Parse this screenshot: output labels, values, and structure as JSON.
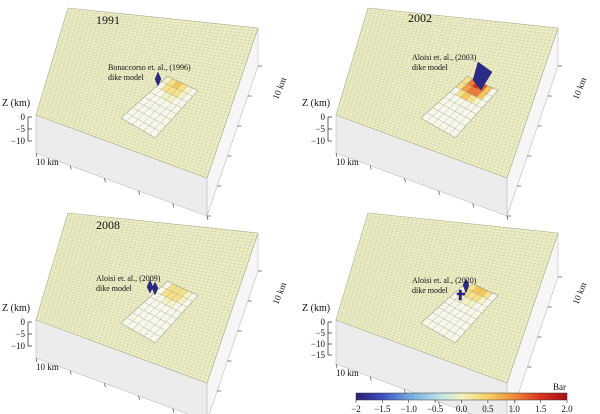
{
  "panels": [
    {
      "year": "1991",
      "annotation": [
        "Bonaccorso et. al., (1996)",
        "dike model"
      ],
      "z_label": "Z (km)",
      "z_ticks": [
        "0",
        "−5",
        "−10"
      ],
      "x_label": "10 km",
      "y_label": "10 km",
      "patch_intensity": 0.35
    },
    {
      "year": "2002",
      "annotation": [
        "Aloisi et. al., (2003)",
        "dike model"
      ],
      "z_label": "Z (km)",
      "z_ticks": [
        "0",
        "−5",
        "−10"
      ],
      "x_label": "10 km",
      "y_label": "10 km",
      "patch_intensity": 1.0
    },
    {
      "year": "2008",
      "annotation": [
        "Aloisi et. al., (2009)",
        "dike model"
      ],
      "z_label": "Z (km)",
      "z_ticks": [
        "0",
        "−5",
        "−10"
      ],
      "x_label": "10 km",
      "y_label": "10 km",
      "patch_intensity": 0.3
    },
    {
      "year": "",
      "annotation": [
        "Aloisi et. al., (2020)",
        "dike model"
      ],
      "z_label": "Z (km)",
      "z_ticks": [
        "0",
        "−5",
        "−10",
        "−15"
      ],
      "x_label": "10 km",
      "y_label": "10 km",
      "patch_intensity": 0.4
    }
  ],
  "colorbar": {
    "unit": "Bar",
    "ticks": [
      "−2",
      "−1.5",
      "−1.0",
      "−0.5",
      "0.0",
      "0.5",
      "1.0",
      "1.5",
      "2.0"
    ],
    "min": -2,
    "max": 2
  },
  "colors": {
    "surface": "#eeeec6",
    "grid": "#c9c9a0",
    "front_face": "#ececec",
    "side_face": "#f6f6f6",
    "dike": "#2b2a86",
    "colormap": [
      "#2a1f6e",
      "#3b4cc0",
      "#6fa8dc",
      "#bfe3e6",
      "#f4f2c2",
      "#f6d365",
      "#f08a3a",
      "#d7301f",
      "#a50f15"
    ]
  }
}
